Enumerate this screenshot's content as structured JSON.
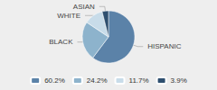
{
  "chart_data": {
    "type": "pie",
    "categories": [
      "HISPANIC",
      "BLACK",
      "WHITE",
      "ASIAN"
    ],
    "values": [
      60.2,
      24.2,
      11.7,
      3.9
    ],
    "value_labels": [
      "60.2%",
      "24.2%",
      "11.7%",
      "3.9%"
    ],
    "colors": [
      "#5b82a8",
      "#8db3cc",
      "#c8dce9",
      "#2e4f6f"
    ],
    "legend": "bottom"
  }
}
